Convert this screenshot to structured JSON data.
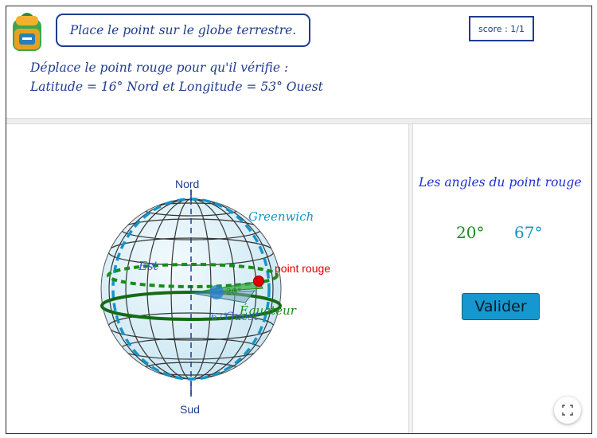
{
  "header": {
    "instruction": "Place le point sur le globe terrestre.",
    "score": "score : 1/1",
    "task_line1": "Déplace le point rouge pour qu'il vérifie :",
    "task_line2": "Latitude  =  16° Nord et Longitude = 53° Ouest"
  },
  "globe": {
    "north_label": "Nord",
    "south_label": "Sud",
    "greenwich_label": "Greenwich",
    "est_label": "Est",
    "ouest_label": "Ouest",
    "equateur_label": "Équateur",
    "point_label": "point rouge",
    "lat_angle_label": "20°",
    "lon_angle_label": "67°",
    "colors": {
      "meridian": "#1693c8",
      "equator": "#198c19",
      "point": "#e00000",
      "axis": "#1f3c8f",
      "sphere_fill": "#d7eef7"
    }
  },
  "side": {
    "title": "Les angles du point rouge",
    "latitude_value": "20°",
    "longitude_value": "67°",
    "valider_label": "Valider"
  },
  "icons": {
    "bag": "backpack-icon",
    "fullscreen": "fullscreen-icon"
  }
}
